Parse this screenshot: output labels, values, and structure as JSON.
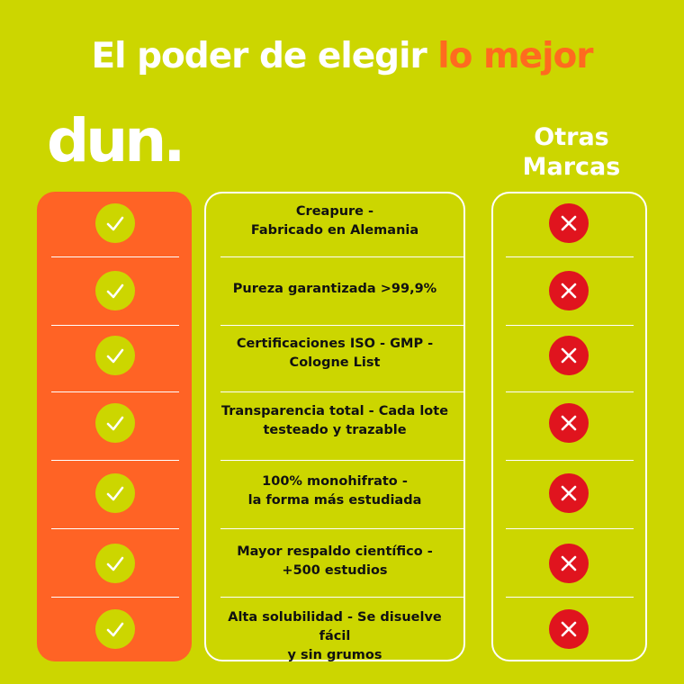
{
  "header": {
    "title_main": "El poder de elegir",
    "title_highlight": "lo mejor",
    "brand": "dun.",
    "other_brands": "Otras Marcas"
  },
  "rows": [
    [
      "Creapure -",
      "Fabricado en Alemania"
    ],
    [
      "Pureza garantizada >99,9%"
    ],
    [
      "Certificaciones ISO - GMP -",
      "Cologne List"
    ],
    [
      "Transparencia total - Cada lote",
      "testeado y trazable"
    ],
    [
      "100% monohifrato -",
      "la forma más estudiada"
    ],
    [
      "Mayor respaldo científico -",
      "+500 estudios"
    ],
    [
      "Alta solubilidad - Se disuelve fácil",
      "y sin grumos"
    ]
  ]
}
